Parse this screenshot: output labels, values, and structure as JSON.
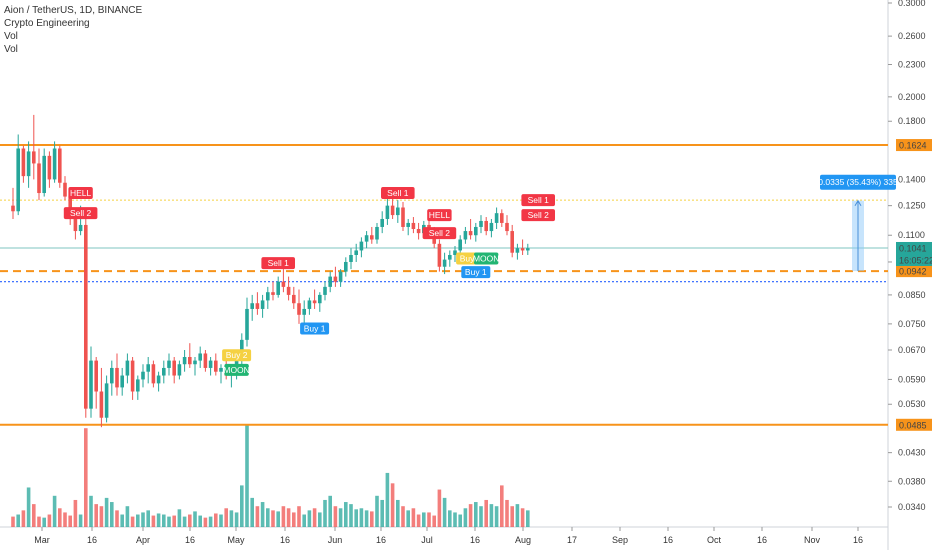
{
  "legend": {
    "symbol_line": "Aion / TetherUS, 1D, BINANCE",
    "indicator": "Crypto Engineering",
    "vol1": "Vol",
    "vol2": "Vol"
  },
  "colors": {
    "up": "#26a69a",
    "down": "#ef5350",
    "level": "#f7931a",
    "dotted_yellow": "#f5d142",
    "blue_dotted": "#2962ff",
    "teal_line": "#7fc6c0",
    "measure": "#90caf9"
  },
  "chart_data": {
    "type": "candlestick",
    "y_ticks": [
      "0.3000",
      "0.2600",
      "0.2300",
      "0.2000",
      "0.1800",
      "0.1400",
      "0.1250",
      "0.1100",
      "0.0980",
      "0.0850",
      "0.0750",
      "0.0670",
      "0.0590",
      "0.0530",
      "0.0430",
      "0.0380",
      "0.0340"
    ],
    "x_ticks": [
      "Mar",
      "16",
      "Apr",
      "16",
      "May",
      "16",
      "Jun",
      "16",
      "Jul",
      "16",
      "Aug",
      "17",
      "Sep",
      "16",
      "Oct",
      "16",
      "Nov",
      "16"
    ],
    "ohlc": [
      [
        0.125,
        0.135,
        0.118,
        0.122
      ],
      [
        0.122,
        0.17,
        0.12,
        0.16
      ],
      [
        0.16,
        0.162,
        0.138,
        0.142
      ],
      [
        0.142,
        0.165,
        0.135,
        0.158
      ],
      [
        0.158,
        0.185,
        0.14,
        0.15
      ],
      [
        0.15,
        0.16,
        0.128,
        0.132
      ],
      [
        0.132,
        0.16,
        0.13,
        0.155
      ],
      [
        0.155,
        0.158,
        0.135,
        0.14
      ],
      [
        0.14,
        0.165,
        0.138,
        0.16
      ],
      [
        0.16,
        0.162,
        0.135,
        0.138
      ],
      [
        0.138,
        0.142,
        0.128,
        0.13
      ],
      [
        0.13,
        0.135,
        0.115,
        0.118
      ],
      [
        0.118,
        0.122,
        0.108,
        0.112
      ],
      [
        0.112,
        0.125,
        0.11,
        0.115
      ],
      [
        0.115,
        0.118,
        0.05,
        0.052
      ],
      [
        0.052,
        0.068,
        0.05,
        0.064
      ],
      [
        0.064,
        0.065,
        0.052,
        0.056
      ],
      [
        0.056,
        0.062,
        0.048,
        0.05
      ],
      [
        0.05,
        0.06,
        0.049,
        0.058
      ],
      [
        0.058,
        0.064,
        0.055,
        0.062
      ],
      [
        0.062,
        0.066,
        0.055,
        0.057
      ],
      [
        0.057,
        0.062,
        0.055,
        0.06
      ],
      [
        0.06,
        0.066,
        0.058,
        0.064
      ],
      [
        0.064,
        0.065,
        0.054,
        0.056
      ],
      [
        0.056,
        0.06,
        0.054,
        0.059
      ],
      [
        0.059,
        0.063,
        0.057,
        0.061
      ],
      [
        0.061,
        0.065,
        0.058,
        0.063
      ],
      [
        0.063,
        0.064,
        0.057,
        0.058
      ],
      [
        0.058,
        0.061,
        0.056,
        0.06
      ],
      [
        0.06,
        0.064,
        0.058,
        0.062
      ],
      [
        0.062,
        0.066,
        0.06,
        0.064
      ],
      [
        0.064,
        0.065,
        0.058,
        0.06
      ],
      [
        0.06,
        0.064,
        0.059,
        0.063
      ],
      [
        0.063,
        0.067,
        0.061,
        0.065
      ],
      [
        0.065,
        0.069,
        0.062,
        0.063
      ],
      [
        0.063,
        0.065,
        0.06,
        0.064
      ],
      [
        0.064,
        0.068,
        0.062,
        0.066
      ],
      [
        0.066,
        0.067,
        0.061,
        0.062
      ],
      [
        0.062,
        0.065,
        0.06,
        0.064
      ],
      [
        0.064,
        0.066,
        0.06,
        0.061
      ],
      [
        0.061,
        0.063,
        0.058,
        0.062
      ],
      [
        0.062,
        0.064,
        0.059,
        0.06
      ],
      [
        0.06,
        0.062,
        0.057,
        0.061
      ],
      [
        0.061,
        0.067,
        0.059,
        0.066
      ],
      [
        0.066,
        0.072,
        0.063,
        0.07
      ],
      [
        0.07,
        0.084,
        0.068,
        0.08
      ],
      [
        0.08,
        0.085,
        0.076,
        0.082
      ],
      [
        0.082,
        0.086,
        0.078,
        0.08
      ],
      [
        0.08,
        0.085,
        0.077,
        0.083
      ],
      [
        0.083,
        0.088,
        0.08,
        0.086
      ],
      [
        0.086,
        0.09,
        0.083,
        0.085
      ],
      [
        0.085,
        0.092,
        0.084,
        0.09
      ],
      [
        0.09,
        0.095,
        0.086,
        0.088
      ],
      [
        0.088,
        0.092,
        0.083,
        0.085
      ],
      [
        0.085,
        0.088,
        0.08,
        0.082
      ],
      [
        0.082,
        0.087,
        0.075,
        0.078
      ],
      [
        0.078,
        0.083,
        0.072,
        0.08
      ],
      [
        0.08,
        0.084,
        0.078,
        0.083
      ],
      [
        0.083,
        0.087,
        0.08,
        0.082
      ],
      [
        0.082,
        0.086,
        0.079,
        0.085
      ],
      [
        0.085,
        0.09,
        0.083,
        0.088
      ],
      [
        0.088,
        0.094,
        0.086,
        0.092
      ],
      [
        0.092,
        0.096,
        0.088,
        0.09
      ],
      [
        0.09,
        0.095,
        0.088,
        0.094
      ],
      [
        0.094,
        0.1,
        0.092,
        0.098
      ],
      [
        0.098,
        0.104,
        0.095,
        0.101
      ],
      [
        0.101,
        0.106,
        0.098,
        0.103
      ],
      [
        0.103,
        0.109,
        0.1,
        0.107
      ],
      [
        0.107,
        0.112,
        0.104,
        0.11
      ],
      [
        0.11,
        0.114,
        0.106,
        0.108
      ],
      [
        0.108,
        0.116,
        0.106,
        0.114
      ],
      [
        0.114,
        0.122,
        0.111,
        0.118
      ],
      [
        0.118,
        0.133,
        0.115,
        0.125
      ],
      [
        0.125,
        0.13,
        0.118,
        0.12
      ],
      [
        0.12,
        0.128,
        0.116,
        0.124
      ],
      [
        0.124,
        0.127,
        0.112,
        0.114
      ],
      [
        0.114,
        0.118,
        0.11,
        0.116
      ],
      [
        0.116,
        0.119,
        0.111,
        0.113
      ],
      [
        0.113,
        0.116,
        0.108,
        0.111
      ],
      [
        0.111,
        0.117,
        0.109,
        0.115
      ],
      [
        0.115,
        0.118,
        0.11,
        0.112
      ],
      [
        0.112,
        0.114,
        0.104,
        0.106
      ],
      [
        0.106,
        0.108,
        0.094,
        0.096
      ],
      [
        0.096,
        0.102,
        0.093,
        0.099
      ],
      [
        0.099,
        0.103,
        0.096,
        0.101
      ],
      [
        0.101,
        0.105,
        0.098,
        0.103
      ],
      [
        0.103,
        0.11,
        0.101,
        0.108
      ],
      [
        0.108,
        0.114,
        0.106,
        0.112
      ],
      [
        0.112,
        0.118,
        0.108,
        0.11
      ],
      [
        0.11,
        0.116,
        0.107,
        0.114
      ],
      [
        0.114,
        0.12,
        0.111,
        0.117
      ],
      [
        0.117,
        0.119,
        0.11,
        0.112
      ],
      [
        0.112,
        0.118,
        0.109,
        0.116
      ],
      [
        0.116,
        0.124,
        0.113,
        0.121
      ],
      [
        0.121,
        0.123,
        0.114,
        0.116
      ],
      [
        0.116,
        0.12,
        0.11,
        0.112
      ],
      [
        0.112,
        0.115,
        0.1,
        0.102
      ],
      [
        0.102,
        0.106,
        0.099,
        0.104
      ],
      [
        0.104,
        0.108,
        0.101,
        0.103
      ],
      [
        0.103,
        0.106,
        0.101,
        0.104
      ]
    ],
    "volume": [
      0.1,
      0.12,
      0.16,
      0.38,
      0.22,
      0.1,
      0.09,
      0.12,
      0.3,
      0.18,
      0.14,
      0.11,
      0.26,
      0.12,
      0.95,
      0.3,
      0.22,
      0.2,
      0.28,
      0.24,
      0.16,
      0.12,
      0.2,
      0.1,
      0.12,
      0.14,
      0.16,
      0.11,
      0.13,
      0.12,
      0.1,
      0.11,
      0.17,
      0.1,
      0.12,
      0.15,
      0.11,
      0.09,
      0.1,
      0.13,
      0.12,
      0.18,
      0.16,
      0.14,
      0.4,
      0.98,
      0.28,
      0.2,
      0.24,
      0.18,
      0.16,
      0.15,
      0.2,
      0.18,
      0.14,
      0.2,
      0.12,
      0.16,
      0.18,
      0.14,
      0.26,
      0.3,
      0.2,
      0.18,
      0.24,
      0.22,
      0.17,
      0.18,
      0.16,
      0.15,
      0.3,
      0.26,
      0.52,
      0.42,
      0.26,
      0.2,
      0.16,
      0.18,
      0.12,
      0.14,
      0.14,
      0.11,
      0.36,
      0.28,
      0.16,
      0.14,
      0.12,
      0.18,
      0.22,
      0.24,
      0.2,
      0.26,
      0.22,
      0.2,
      0.4,
      0.26,
      0.2,
      0.22,
      0.18,
      0.16
    ],
    "levels": [
      {
        "label": "0.1624",
        "value": 0.1624
      },
      {
        "label": "0.0485",
        "value": 0.0485
      }
    ],
    "dashed_level": {
      "label": "0.0942",
      "value": 0.0942
    },
    "yellow_level": 0.128,
    "blue_level": 0.09,
    "last_price": {
      "label": "0.1041",
      "value": 0.1041
    },
    "countdown": "16:05:22",
    "measure_label": "0.0335 (35.43%) 335",
    "signals": [
      {
        "text": "HELL",
        "type": "sell",
        "i": 13,
        "price": 0.132
      },
      {
        "text": "Sell 2",
        "type": "sell",
        "i": 13,
        "price": 0.121
      },
      {
        "text": "Buy 2",
        "type": "buy2",
        "i": 43,
        "price": 0.0655
      },
      {
        "text": "MOON",
        "type": "moon",
        "i": 43,
        "price": 0.0615
      },
      {
        "text": "Sell 1",
        "type": "sell",
        "i": 51,
        "price": 0.0975
      },
      {
        "text": "Buy 1",
        "type": "buy",
        "i": 58,
        "price": 0.0735
      },
      {
        "text": "Sell 1",
        "type": "sell",
        "i": 74,
        "price": 0.132
      },
      {
        "text": "HELL",
        "type": "sell",
        "i": 82,
        "price": 0.12
      },
      {
        "text": "Sell 2",
        "type": "sell",
        "i": 82,
        "price": 0.111
      },
      {
        "text": "Buy 2",
        "type": "buy2",
        "i": 88,
        "price": 0.0995
      },
      {
        "text": "MOON",
        "type": "moon",
        "i": 91,
        "price": 0.0995
      },
      {
        "text": "Buy 1",
        "type": "buy",
        "i": 89,
        "price": 0.0938
      },
      {
        "text": "Sell 1",
        "type": "sell",
        "i": 101,
        "price": 0.128
      },
      {
        "text": "Sell 2",
        "type": "sell",
        "i": 101,
        "price": 0.12
      }
    ]
  }
}
